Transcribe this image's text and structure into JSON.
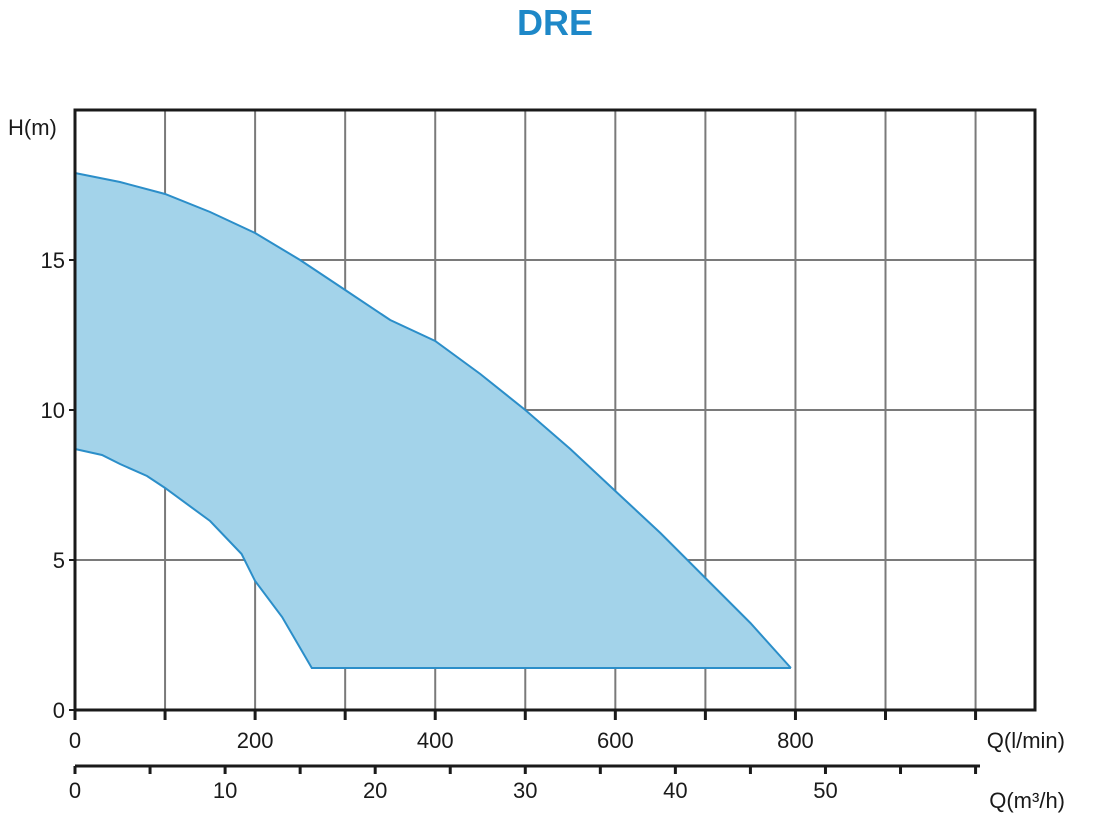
{
  "chart_data": {
    "type": "area",
    "title": "DRE",
    "ylabel": "H(m)",
    "xlabel": "Q(l/min)",
    "xlabel_secondary": "Q(m³/h)",
    "xlim": [
      0,
      1066
    ],
    "ylim": [
      0,
      20
    ],
    "grid": true,
    "x_ticks": [
      0,
      200,
      400,
      600,
      800
    ],
    "x_ticks_secondary": [
      0,
      10,
      20,
      30,
      40,
      50
    ],
    "y_ticks": [
      0,
      5,
      10,
      15
    ],
    "series": [
      {
        "values_upper": [
          [
            0,
            17.9
          ],
          [
            50,
            17.6
          ],
          [
            100,
            17.2
          ],
          [
            150,
            16.6
          ],
          [
            200,
            15.9
          ],
          [
            250,
            15.0
          ],
          [
            300,
            14.0
          ],
          [
            350,
            13.0
          ],
          [
            400,
            12.3
          ],
          [
            450,
            11.2
          ],
          [
            500,
            10.0
          ],
          [
            550,
            8.7
          ],
          [
            600,
            7.3
          ],
          [
            650,
            5.9
          ],
          [
            700,
            4.4
          ],
          [
            750,
            2.9
          ],
          [
            795,
            1.4
          ]
        ],
        "values_lower": [
          [
            0,
            8.7
          ],
          [
            30,
            8.5
          ],
          [
            50,
            8.2
          ],
          [
            80,
            7.8
          ],
          [
            100,
            7.4
          ],
          [
            150,
            6.3
          ],
          [
            185,
            5.2
          ],
          [
            200,
            4.3
          ],
          [
            230,
            3.1
          ],
          [
            263,
            1.4
          ],
          [
            795,
            1.4
          ]
        ]
      }
    ],
    "colors": {
      "fill": "#a3d3ea",
      "stroke": "#2b8ec9",
      "title": "#1e88c8",
      "grid": "#7a7a7a",
      "frame": "#1a1a1a"
    }
  }
}
